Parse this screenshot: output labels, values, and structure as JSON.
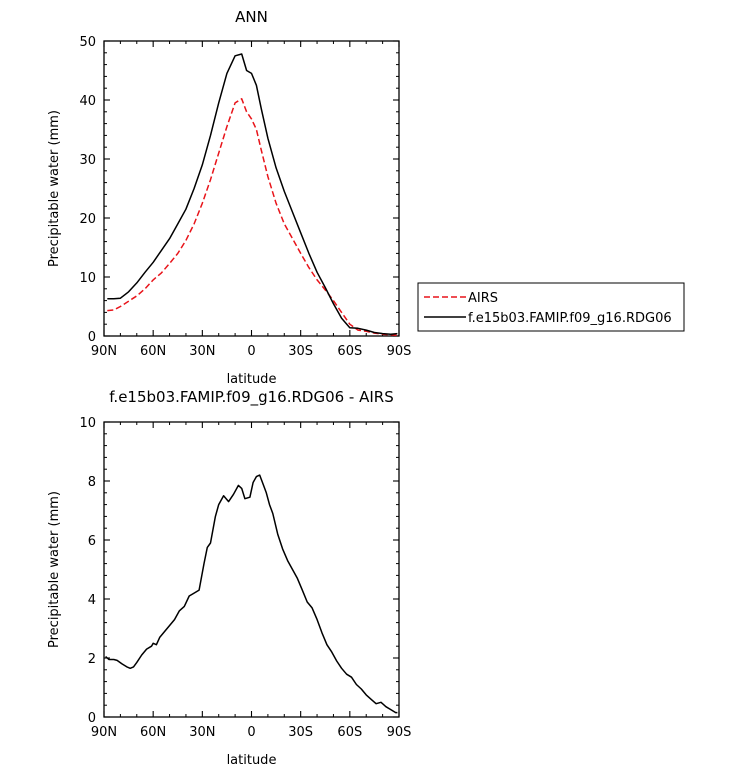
{
  "chart_data": [
    {
      "type": "line",
      "title": "ANN",
      "xlabel": "latitude",
      "ylabel": "Precipitable water (mm)",
      "xlim": [
        90,
        -90
      ],
      "ylim": [
        0,
        50
      ],
      "x_ticks": [
        90,
        60,
        30,
        0,
        -30,
        -60,
        -90
      ],
      "x_tick_labels": [
        "90N",
        "60N",
        "30N",
        "0",
        "30S",
        "60S",
        "90S"
      ],
      "y_ticks": [
        0,
        10,
        20,
        30,
        40,
        50
      ],
      "y_tick_labels": [
        "0",
        "10",
        "20",
        "30",
        "40",
        "50"
      ],
      "grid": false,
      "legend_placement": "right",
      "series": [
        {
          "name": "AIRS",
          "color": "#e8141a",
          "dash": "dashed",
          "x": [
            88,
            84,
            80,
            75,
            70,
            65,
            60,
            55,
            50,
            45,
            40,
            35,
            30,
            25,
            20,
            15,
            10,
            6,
            3,
            0,
            -3,
            -6,
            -10,
            -15,
            -20,
            -25,
            -30,
            -35,
            -40,
            -45,
            -50,
            -55,
            -60,
            -65,
            -70,
            -75,
            -80,
            -85,
            -89
          ],
          "y": [
            4.3,
            4.4,
            5.0,
            5.9,
            6.8,
            8.0,
            9.5,
            10.7,
            12.3,
            14.0,
            16.2,
            19.0,
            22.5,
            26.5,
            31.0,
            35.5,
            39.5,
            40.2,
            38.0,
            36.8,
            35.0,
            31.5,
            27.0,
            22.5,
            19.0,
            16.5,
            14.0,
            11.6,
            9.5,
            7.8,
            6.0,
            4.0,
            2.0,
            1.0,
            0.8,
            0.5,
            0.3,
            0.2,
            0.1
          ]
        },
        {
          "name": "f.e15b03.FAMIP.f09_g16.RDG06",
          "color": "#000000",
          "dash": "solid",
          "x": [
            88,
            84,
            80,
            75,
            70,
            65,
            60,
            55,
            50,
            45,
            40,
            35,
            30,
            25,
            20,
            15,
            10,
            6,
            3,
            0,
            -3,
            -6,
            -10,
            -15,
            -20,
            -25,
            -30,
            -35,
            -40,
            -45,
            -50,
            -55,
            -60,
            -65,
            -70,
            -75,
            -80,
            -85,
            -89
          ],
          "y": [
            6.3,
            6.3,
            6.4,
            7.5,
            9.0,
            10.8,
            12.5,
            14.5,
            16.5,
            19.0,
            21.5,
            25.0,
            29.0,
            34.0,
            39.5,
            44.5,
            47.5,
            47.8,
            45.0,
            44.5,
            42.5,
            38.5,
            33.5,
            28.5,
            24.5,
            21.0,
            17.5,
            14.0,
            10.8,
            8.2,
            5.5,
            3.0,
            1.4,
            1.3,
            1.0,
            0.6,
            0.4,
            0.3,
            0.4
          ]
        }
      ]
    },
    {
      "type": "line",
      "title": "f.e15b03.FAMIP.f09_g16.RDG06 - AIRS",
      "xlabel": "latitude",
      "ylabel": "Precipitable water (mm)",
      "xlim": [
        90,
        -90
      ],
      "ylim": [
        0,
        10
      ],
      "x_ticks": [
        90,
        60,
        30,
        0,
        -30,
        -60,
        -90
      ],
      "x_tick_labels": [
        "90N",
        "60N",
        "30N",
        "0",
        "30S",
        "60S",
        "90S"
      ],
      "y_ticks": [
        0,
        2,
        4,
        6,
        8,
        10
      ],
      "y_tick_labels": [
        "0",
        "2",
        "4",
        "6",
        "8",
        "10"
      ],
      "grid": false,
      "series": [
        {
          "color": "#000000",
          "dash": "solid",
          "x": [
            89,
            87,
            84,
            82,
            79,
            76,
            74,
            72,
            70,
            67,
            64,
            61,
            60,
            58,
            56,
            53,
            50,
            47,
            44,
            41,
            38,
            35,
            32,
            29,
            27,
            25,
            22,
            20,
            17,
            14,
            11,
            8,
            6,
            4,
            1,
            -1,
            -3,
            -5,
            -7,
            -9,
            -11,
            -13,
            -16,
            -19,
            -22,
            -25,
            -28,
            -31,
            -34,
            -37,
            -40,
            -43,
            -46,
            -49,
            -52,
            -55,
            -58,
            -61,
            -64,
            -67,
            -70,
            -73,
            -76,
            -79,
            -82,
            -85,
            -88,
            -89
          ],
          "y": [
            2.05,
            1.95,
            1.95,
            1.92,
            1.8,
            1.7,
            1.65,
            1.7,
            1.85,
            2.1,
            2.3,
            2.4,
            2.5,
            2.45,
            2.7,
            2.9,
            3.1,
            3.3,
            3.6,
            3.75,
            4.1,
            4.2,
            4.3,
            5.2,
            5.75,
            5.9,
            6.8,
            7.2,
            7.5,
            7.3,
            7.55,
            7.85,
            7.75,
            7.4,
            7.45,
            7.95,
            8.15,
            8.2,
            7.9,
            7.6,
            7.2,
            6.9,
            6.2,
            5.7,
            5.3,
            5.0,
            4.7,
            4.3,
            3.9,
            3.7,
            3.3,
            2.85,
            2.45,
            2.2,
            1.9,
            1.65,
            1.45,
            1.35,
            1.1,
            0.95,
            0.75,
            0.6,
            0.45,
            0.5,
            0.35,
            0.25,
            0.15,
            0.15
          ]
        }
      ]
    }
  ]
}
